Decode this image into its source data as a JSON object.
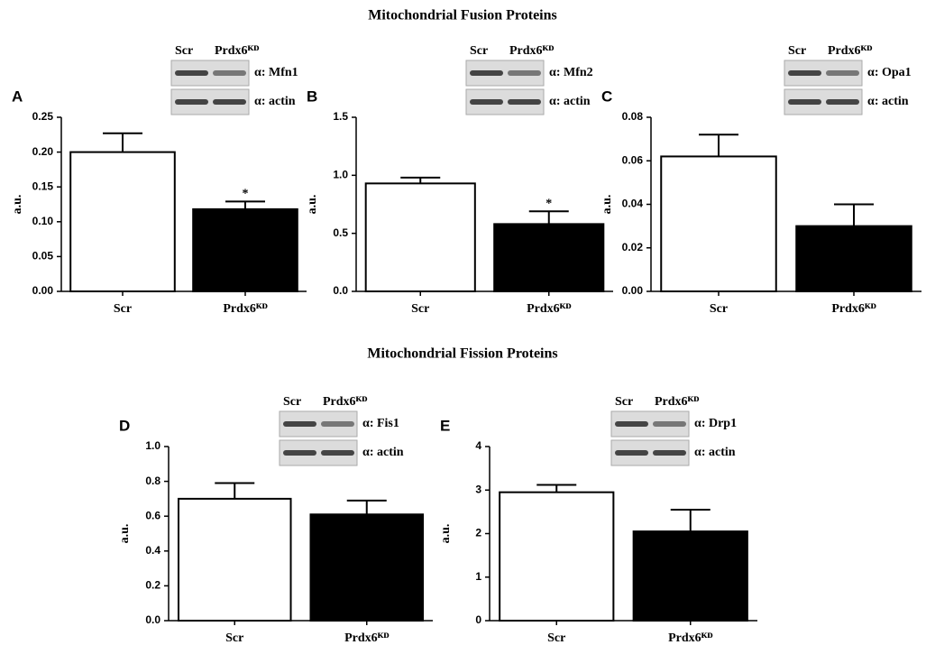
{
  "headings": [
    "Mitochondrial Fusion Proteins",
    "Mitochondrial Fission Proteins"
  ],
  "chart_data": [
    {
      "type": "bar",
      "panel": "A",
      "ylabel": "a.u.",
      "categories": [
        "Scr",
        "Prdx6ᴷᴰ"
      ],
      "values": [
        0.2,
        0.118
      ],
      "errors": [
        0.027,
        0.011
      ],
      "significance": [
        null,
        "*"
      ],
      "colors": [
        "#ffffff",
        "#000000"
      ],
      "ylim": [
        0,
        0.25
      ],
      "yticks": [
        {
          "value": 0,
          "label": "0.00"
        },
        0.05,
        {
          "value": 0.1,
          "label": "0.10"
        },
        0.15,
        {
          "value": 0.2,
          "label": "0.20"
        },
        0.25
      ],
      "blot": {
        "lanes": [
          "Scr",
          "Prdx6ᴷᴰ"
        ],
        "rows": [
          "α: Mfn1",
          "α: actin"
        ]
      }
    },
    {
      "type": "bar",
      "panel": "B",
      "ylabel": "a.u.",
      "categories": [
        "Scr",
        "Prdx6ᴷᴰ"
      ],
      "values": [
        0.93,
        0.58
      ],
      "errors": [
        0.05,
        0.11
      ],
      "significance": [
        null,
        "*"
      ],
      "colors": [
        "#ffffff",
        "#000000"
      ],
      "ylim": [
        0,
        1.5
      ],
      "yticks": [
        {
          "value": 0,
          "label": "0.0"
        },
        0.5,
        {
          "value": 1,
          "label": "1.0"
        },
        1.5
      ],
      "blot": {
        "lanes": [
          "Scr",
          "Prdx6ᴷᴰ"
        ],
        "rows": [
          "α: Mfn2",
          "α: actin"
        ]
      }
    },
    {
      "type": "bar",
      "panel": "C",
      "ylabel": "a.u.",
      "categories": [
        "Scr",
        "Prdx6ᴷᴰ"
      ],
      "values": [
        0.062,
        0.03
      ],
      "errors": [
        0.01,
        0.01
      ],
      "colors": [
        "#ffffff",
        "#000000"
      ],
      "ylim": [
        0,
        0.08
      ],
      "yticks": [
        {
          "value": 0,
          "label": "0.00"
        },
        {
          "value": 0.02,
          "label": "0.02"
        },
        {
          "value": 0.04,
          "label": "0.04"
        },
        {
          "value": 0.06,
          "label": "0.06"
        },
        {
          "value": 0.08,
          "label": "0.08"
        }
      ],
      "blot": {
        "lanes": [
          "Scr",
          "Prdx6ᴷᴰ"
        ],
        "rows": [
          "α: Opa1",
          "α: actin"
        ]
      }
    },
    {
      "type": "bar",
      "panel": "D",
      "ylabel": "a.u.",
      "categories": [
        "Scr",
        "Prdx6ᴷᴰ"
      ],
      "values": [
        0.7,
        0.61
      ],
      "errors": [
        0.09,
        0.08
      ],
      "colors": [
        "#ffffff",
        "#000000"
      ],
      "ylim": [
        0,
        1
      ],
      "yticks": [
        {
          "value": 0,
          "label": "0.0"
        },
        0.2,
        0.4,
        0.6,
        0.8,
        {
          "value": 1,
          "label": "1.0"
        }
      ],
      "blot": {
        "lanes": [
          "Scr",
          "Prdx6ᴷᴰ"
        ],
        "rows": [
          "α: Fis1",
          "α: actin"
        ]
      }
    },
    {
      "type": "bar",
      "panel": "E",
      "ylabel": "a.u.",
      "categories": [
        "Scr",
        "Prdx6ᴷᴰ"
      ],
      "values": [
        2.95,
        2.05
      ],
      "errors": [
        0.17,
        0.5
      ],
      "colors": [
        "#ffffff",
        "#000000"
      ],
      "ylim": [
        0,
        4
      ],
      "yticks": [
        0,
        1,
        2,
        3,
        4
      ],
      "blot": {
        "lanes": [
          "Scr",
          "Prdx6ᴷᴰ"
        ],
        "rows": [
          "α: Drp1",
          "α: actin"
        ]
      }
    }
  ]
}
